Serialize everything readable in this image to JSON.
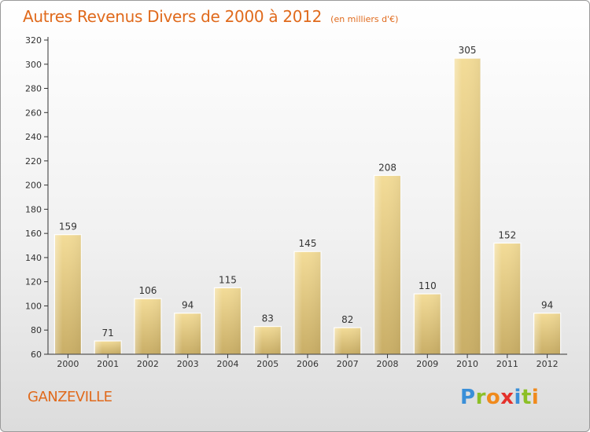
{
  "header": {
    "title": "Autres Revenus Divers de 2000 à 2012",
    "unit": "(en milliers d'€)"
  },
  "footer": {
    "commune": "GANZEVILLE",
    "brand": "Proxiti"
  },
  "colors": {
    "title": "#e06a1c",
    "bar_light": "#f3dc98",
    "bar_dark": "#c9ae66",
    "axis": "#333333"
  },
  "chart_data": {
    "type": "bar",
    "title": "Autres Revenus Divers de 2000 à 2012",
    "xlabel": "",
    "ylabel": "",
    "categories": [
      "2000",
      "2001",
      "2002",
      "2003",
      "2004",
      "2005",
      "2006",
      "2007",
      "2008",
      "2009",
      "2010",
      "2011",
      "2012"
    ],
    "values": [
      159,
      71,
      106,
      94,
      115,
      83,
      145,
      82,
      208,
      110,
      305,
      152,
      94
    ],
    "ylim": [
      60,
      320
    ],
    "yticks": [
      60,
      80,
      100,
      120,
      140,
      160,
      180,
      200,
      220,
      240,
      260,
      280,
      300,
      320
    ],
    "grid": false,
    "legend": "none"
  }
}
